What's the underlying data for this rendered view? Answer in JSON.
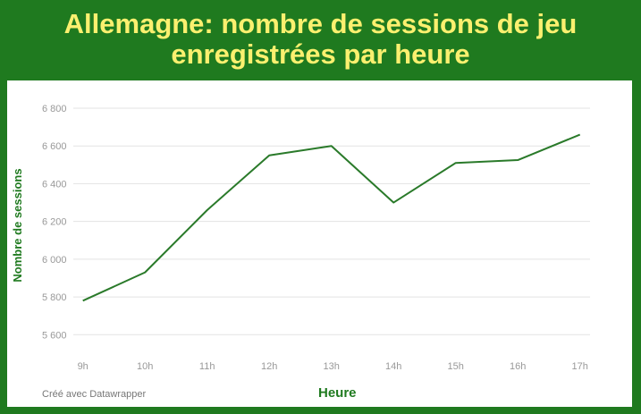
{
  "title": "Allemagne: nombre de sessions de jeu enregistrées par heure",
  "footer": "Créé avec Datawrapper",
  "colors": {
    "background": "#1f7a1f",
    "title": "#fbf06f",
    "line": "#2a7a2a"
  },
  "chart_data": {
    "type": "line",
    "title": "Allemagne: nombre de sessions de jeu enregistrées par heure",
    "xlabel": "Heure",
    "ylabel": "Nombre de sessions",
    "categories": [
      "9h",
      "10h",
      "11h",
      "12h",
      "13h",
      "14h",
      "15h",
      "16h",
      "17h"
    ],
    "values": [
      5780,
      5930,
      6260,
      6550,
      6600,
      6300,
      6510,
      6525,
      6660
    ],
    "yticks": [
      5600,
      5800,
      6000,
      6200,
      6400,
      6600,
      6800
    ],
    "ytick_labels": [
      "5 600",
      "5 800",
      "6 000",
      "6 200",
      "6 400",
      "6 600",
      "6 800"
    ],
    "ylim": [
      5600,
      6800
    ],
    "grid": true,
    "legend": "none"
  }
}
